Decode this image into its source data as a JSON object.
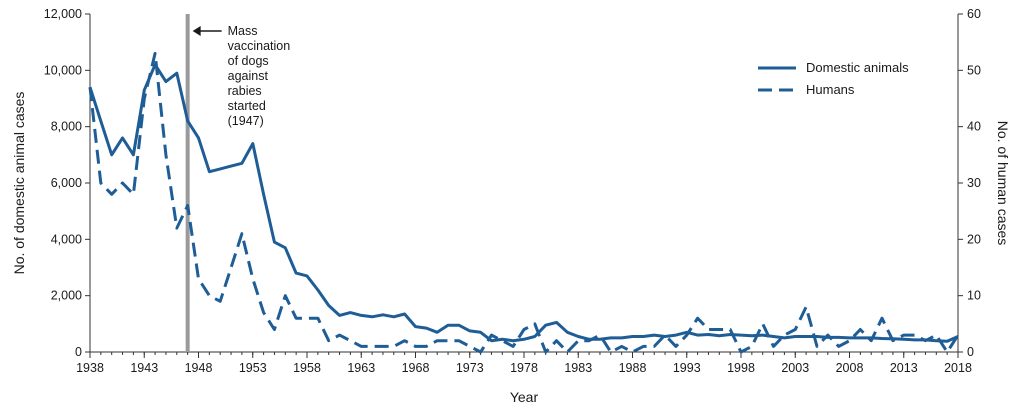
{
  "chart_data": {
    "type": "line",
    "xlabel": "Year",
    "ylabel_left": "No. of domestic animal cases",
    "ylabel_right": "No. of human cases",
    "xlim": [
      1938,
      2018
    ],
    "ylim_left": [
      0,
      12000
    ],
    "ylim_right": [
      0,
      60
    ],
    "x_ticks": [
      1938,
      1943,
      1948,
      1953,
      1958,
      1963,
      1968,
      1973,
      1978,
      1983,
      1988,
      1993,
      1998,
      2003,
      2008,
      2013,
      2018
    ],
    "y_ticks_left": [
      0,
      2000,
      4000,
      6000,
      8000,
      10000,
      12000
    ],
    "y_ticks_right": [
      0,
      10,
      20,
      30,
      40,
      50,
      60
    ],
    "y_tick_labels_left": [
      "0",
      "2,000",
      "4,000",
      "6,000",
      "8,000",
      "10,000",
      "12,000"
    ],
    "y_tick_labels_right": [
      "0",
      "10",
      "20",
      "30",
      "40",
      "50",
      "60"
    ],
    "grid": false,
    "legend_position": "top-right",
    "color": "#1f5d96",
    "annotation": {
      "x": 1947,
      "lines": [
        "Mass",
        "vaccination",
        "of dogs",
        "against",
        "rabies",
        "started",
        "(1947)"
      ]
    },
    "series": [
      {
        "name": "Domestic animals",
        "axis": "left",
        "style": "solid",
        "x": [
          1938,
          1939,
          1940,
          1941,
          1942,
          1943,
          1944,
          1945,
          1946,
          1947,
          1948,
          1949,
          1950,
          1951,
          1952,
          1953,
          1954,
          1955,
          1956,
          1957,
          1958,
          1959,
          1960,
          1961,
          1962,
          1963,
          1964,
          1965,
          1966,
          1967,
          1968,
          1969,
          1970,
          1971,
          1972,
          1973,
          1974,
          1975,
          1976,
          1977,
          1978,
          1979,
          1980,
          1981,
          1982,
          1983,
          1984,
          1985,
          1986,
          1987,
          1988,
          1989,
          1990,
          1991,
          1992,
          1993,
          1994,
          1995,
          1996,
          1997,
          1998,
          1999,
          2000,
          2001,
          2002,
          2003,
          2004,
          2005,
          2006,
          2007,
          2008,
          2009,
          2010,
          2011,
          2012,
          2013,
          2014,
          2015,
          2016,
          2017,
          2018
        ],
        "values": [
          9400,
          8200,
          7000,
          7600,
          7000,
          9300,
          10200,
          9600,
          9900,
          8200,
          7600,
          6400,
          6500,
          6600,
          6700,
          7400,
          5600,
          3900,
          3700,
          2800,
          2700,
          2200,
          1650,
          1300,
          1400,
          1300,
          1250,
          1320,
          1250,
          1350,
          900,
          850,
          700,
          950,
          950,
          750,
          700,
          400,
          450,
          400,
          450,
          550,
          950,
          1050,
          700,
          550,
          450,
          450,
          500,
          500,
          550,
          550,
          600,
          550,
          600,
          700,
          600,
          620,
          580,
          620,
          600,
          580,
          600,
          550,
          500,
          550,
          550,
          550,
          520,
          520,
          500,
          500,
          500,
          480,
          470,
          450,
          430,
          430,
          400,
          380,
          550
        ]
      },
      {
        "name": "Humans",
        "axis": "right",
        "style": "dashed",
        "x": [
          1938,
          1939,
          1940,
          1941,
          1942,
          1943,
          1944,
          1945,
          1946,
          1947,
          1948,
          1949,
          1950,
          1951,
          1952,
          1953,
          1954,
          1955,
          1956,
          1957,
          1958,
          1959,
          1960,
          1961,
          1962,
          1963,
          1964,
          1965,
          1966,
          1967,
          1968,
          1969,
          1970,
          1971,
          1972,
          1973,
          1974,
          1975,
          1976,
          1977,
          1978,
          1979,
          1980,
          1981,
          1982,
          1983,
          1984,
          1985,
          1986,
          1987,
          1988,
          1989,
          1990,
          1991,
          1992,
          1993,
          1994,
          1995,
          1996,
          1997,
          1998,
          1999,
          2000,
          2001,
          2002,
          2003,
          2004,
          2005,
          2006,
          2007,
          2008,
          2009,
          2010,
          2011,
          2012,
          2013,
          2014,
          2015,
          2016,
          2017,
          2018
        ],
        "values": [
          47,
          30,
          28,
          30,
          28,
          45,
          53,
          35,
          22,
          26,
          13,
          10,
          9,
          15,
          21,
          13,
          7,
          4,
          10,
          6,
          6,
          6,
          2,
          3,
          2,
          1,
          1,
          1,
          1,
          2,
          1,
          1,
          2,
          2,
          2,
          1,
          0,
          3,
          2,
          1,
          4,
          5,
          0,
          2,
          0,
          2,
          2,
          3,
          0,
          1,
          0,
          1,
          1,
          3,
          1,
          3,
          6,
          4,
          4,
          4,
          0,
          1,
          5,
          1,
          3,
          4,
          8,
          1,
          3,
          1,
          2,
          4,
          2,
          6,
          2,
          3,
          3,
          2,
          3,
          0,
          3
        ]
      }
    ]
  }
}
